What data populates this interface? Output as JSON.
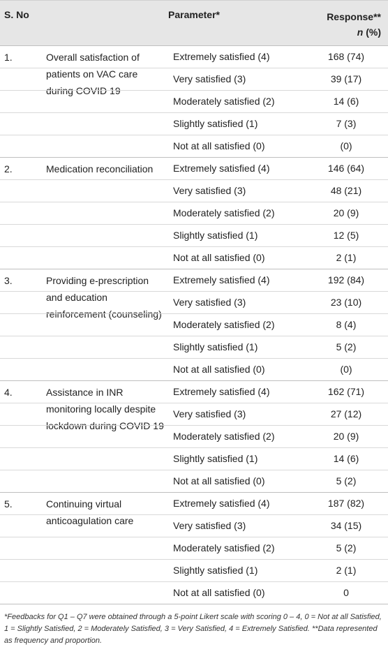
{
  "header": {
    "sno": "S. No",
    "parameter": "Parameter*",
    "response_line1": "Response**",
    "response_line2_italic": "n",
    "response_line2_rest": " (%)"
  },
  "groups": [
    {
      "number": "1.",
      "parameter": "Overall satisfaction of patients on VAC care during COVID 19",
      "rows": [
        {
          "label": "Extremely satisfied (4)",
          "value": "168 (74)"
        },
        {
          "label": "Very satisfied (3)",
          "value": "39 (17)"
        },
        {
          "label": "Moderately satisfied (2)",
          "value": "14 (6)"
        },
        {
          "label": "Slightly satisfied (1)",
          "value": "7 (3)"
        },
        {
          "label": "Not at all satisfied (0)",
          "value": "(0)"
        }
      ]
    },
    {
      "number": "2.",
      "parameter": "Medication reconciliation",
      "rows": [
        {
          "label": "Extremely satisfied (4)",
          "value": "146 (64)"
        },
        {
          "label": "Very satisfied (3)",
          "value": "48 (21)"
        },
        {
          "label": "Moderately satisfied (2)",
          "value": "20 (9)"
        },
        {
          "label": "Slightly satisfied (1)",
          "value": "12 (5)"
        },
        {
          "label": "Not at all satisfied (0)",
          "value": "2 (1)"
        }
      ]
    },
    {
      "number": "3.",
      "parameter": "Providing e-prescription and education reinforcement (counseling)",
      "rows": [
        {
          "label": "Extremely satisfied (4)",
          "value": "192 (84)"
        },
        {
          "label": "Very satisfied (3)",
          "value": "23 (10)"
        },
        {
          "label": "Moderately satisfied (2)",
          "value": "8 (4)"
        },
        {
          "label": "Slightly satisfied (1)",
          "value": "5 (2)"
        },
        {
          "label": "Not at all satisfied (0)",
          "value": "(0)"
        }
      ]
    },
    {
      "number": "4.",
      "parameter": "Assistance in INR monitoring locally despite lockdown during COVID 19",
      "rows": [
        {
          "label": "Extremely satisfied (4)",
          "value": "162 (71)"
        },
        {
          "label": "Very satisfied (3)",
          "value": "27 (12)"
        },
        {
          "label": "Moderately satisfied (2)",
          "value": "20 (9)"
        },
        {
          "label": "Slightly satisfied (1)",
          "value": "14 (6)"
        },
        {
          "label": "Not at all satisfied (0)",
          "value": "5 (2)"
        }
      ]
    },
    {
      "number": "5.",
      "parameter": "Continuing virtual anticoagulation care",
      "rows": [
        {
          "label": "Extremely satisfied (4)",
          "value": "187 (82)"
        },
        {
          "label": "Very satisfied (3)",
          "value": "34 (15)"
        },
        {
          "label": "Moderately satisfied (2)",
          "value": "5 (2)"
        },
        {
          "label": "Slightly satisfied (1)",
          "value": "2 (1)"
        },
        {
          "label": "Not at all satisfied (0)",
          "value": "0"
        }
      ]
    }
  ],
  "footnote": "*Feedbacks for Q1 – Q7 were obtained through a 5-point Likert scale with scoring 0 – 4, 0 = Not at all Satisfied, 1 = Slightly Satisfied, 2 = Moderately Satisfied, 3 = Very Satisfied, 4 = Extremely Satisfied. **Data represented as frequency and proportion."
}
